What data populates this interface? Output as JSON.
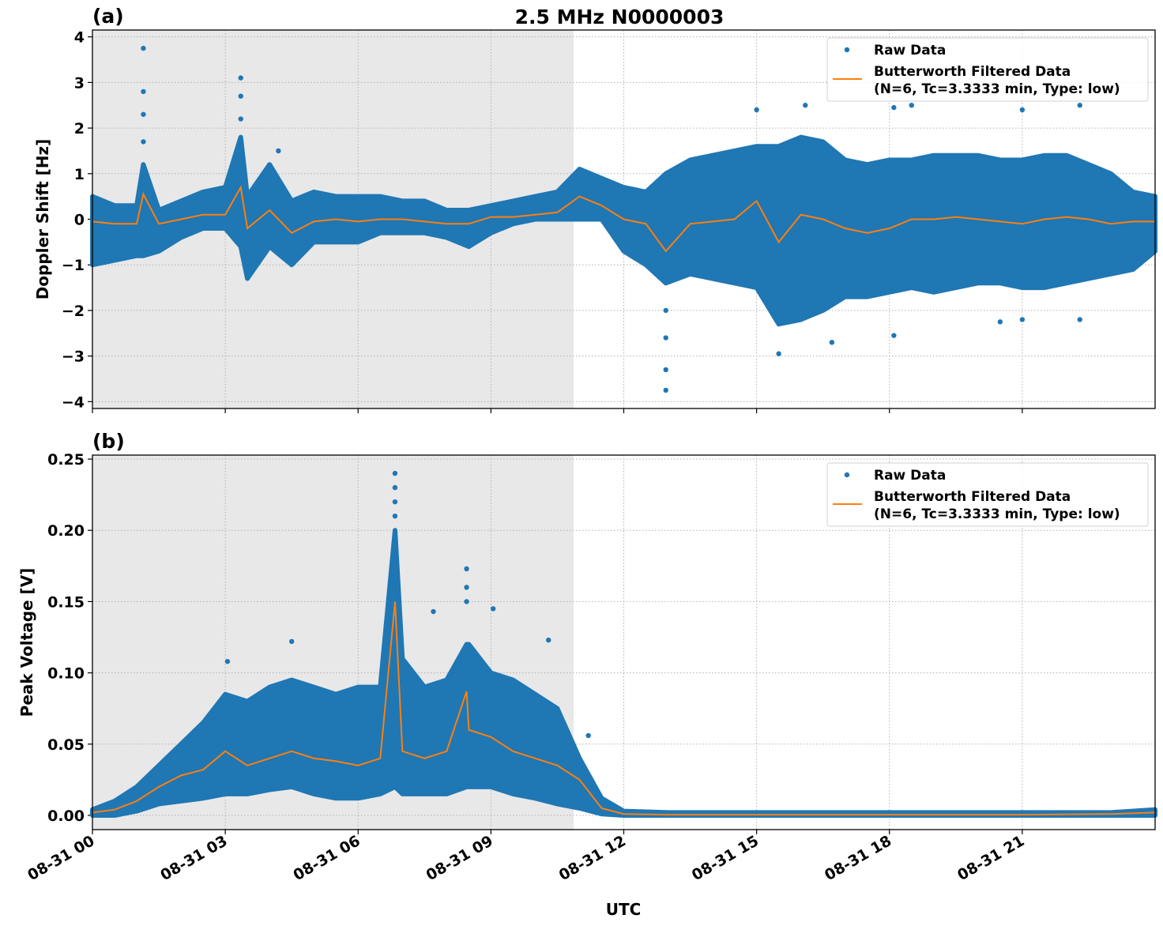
{
  "title": "2.5 MHz N0000003",
  "xlabel": "UTC",
  "colors": {
    "raw": "#1f77b4",
    "filtered": "#ff7f0e",
    "shade": "#e8e8e8",
    "grid": "#b0b0b0"
  },
  "legend": {
    "raw": "Raw Data",
    "filtered_line1": "Butterworth Filtered Data",
    "filtered_line2": "(N=6, Tc=3.3333 min, Type: low)",
    "placement": "top-right"
  },
  "x_ticks": [
    "08-31 00",
    "08-31 03",
    "08-31 06",
    "08-31 09",
    "08-31 12",
    "08-31 15",
    "08-31 18",
    "08-31 21"
  ],
  "xlim": [
    "08-31 00:00",
    "09-01 00:00"
  ],
  "shaded_region": [
    "08-31 00:00",
    "08-31 10:52"
  ],
  "grid": true,
  "chart_data": [
    {
      "type": "scatter",
      "panel_label": "(a)",
      "ylabel": "Doppler Shift [Hz]",
      "ylim": [
        -4.15,
        4.15
      ],
      "y_ticks": [
        "4",
        "3",
        "2",
        "1",
        "0",
        "−1",
        "−2",
        "−3",
        "−4"
      ],
      "y_tick_values": [
        4,
        3,
        2,
        1,
        0,
        -1,
        -2,
        -3,
        -4
      ],
      "x": [
        "00:00",
        "00:30",
        "01:00",
        "01:09",
        "01:30",
        "02:00",
        "02:30",
        "03:00",
        "03:21",
        "03:30",
        "04:00",
        "04:30",
        "05:00",
        "05:30",
        "06:00",
        "06:30",
        "07:00",
        "07:30",
        "08:00",
        "08:30",
        "09:00",
        "09:30",
        "10:00",
        "10:30",
        "11:00",
        "11:30",
        "12:00",
        "12:30",
        "12:57",
        "13:30",
        "14:00",
        "14:30",
        "15:00",
        "15:30",
        "16:00",
        "16:30",
        "17:00",
        "17:30",
        "18:00",
        "18:30",
        "19:00",
        "19:30",
        "20:00",
        "20:30",
        "21:00",
        "21:30",
        "22:00",
        "22:30",
        "23:00",
        "23:30",
        "24:00"
      ],
      "filtered": [
        -0.05,
        -0.1,
        -0.1,
        0.55,
        -0.1,
        0.0,
        0.1,
        0.1,
        0.7,
        -0.2,
        0.2,
        -0.3,
        -0.05,
        0.0,
        -0.05,
        0.0,
        0.0,
        -0.05,
        -0.1,
        -0.1,
        0.05,
        0.05,
        0.1,
        0.15,
        0.5,
        0.3,
        0.0,
        -0.1,
        -0.7,
        -0.1,
        -0.05,
        0.0,
        0.4,
        -0.5,
        0.1,
        0.0,
        -0.2,
        -0.3,
        -0.2,
        0.0,
        0.0,
        0.05,
        0.0,
        -0.05,
        -0.1,
        0.0,
        0.05,
        0.0,
        -0.1,
        -0.05,
        -0.05
      ],
      "raw_lower": [
        -1.0,
        -0.9,
        -0.8,
        -0.8,
        -0.7,
        -0.4,
        -0.2,
        -0.2,
        -0.6,
        -1.3,
        -0.6,
        -1.0,
        -0.5,
        -0.5,
        -0.5,
        -0.3,
        -0.3,
        -0.3,
        -0.4,
        -0.6,
        -0.3,
        -0.1,
        0.0,
        0.0,
        0.0,
        0.0,
        -0.7,
        -1.0,
        -1.4,
        -1.2,
        -1.3,
        -1.4,
        -1.5,
        -2.3,
        -2.2,
        -2.0,
        -1.7,
        -1.7,
        -1.6,
        -1.5,
        -1.6,
        -1.5,
        -1.4,
        -1.4,
        -1.5,
        -1.5,
        -1.4,
        -1.3,
        -1.2,
        -1.1,
        -0.7
      ],
      "raw_upper": [
        0.5,
        0.3,
        0.3,
        1.2,
        0.2,
        0.4,
        0.6,
        0.7,
        1.8,
        0.5,
        1.2,
        0.4,
        0.6,
        0.5,
        0.5,
        0.5,
        0.4,
        0.4,
        0.2,
        0.2,
        0.3,
        0.4,
        0.5,
        0.6,
        1.1,
        0.9,
        0.7,
        0.6,
        1.0,
        1.3,
        1.4,
        1.5,
        1.6,
        1.6,
        1.8,
        1.7,
        1.3,
        1.2,
        1.3,
        1.3,
        1.4,
        1.4,
        1.4,
        1.3,
        1.3,
        1.4,
        1.4,
        1.2,
        1.0,
        0.6,
        0.5
      ],
      "raw_outliers": [
        [
          "01:09",
          3.75
        ],
        [
          "01:09",
          2.8
        ],
        [
          "01:09",
          2.3
        ],
        [
          "01:09",
          1.7
        ],
        [
          "03:21",
          3.1
        ],
        [
          "03:21",
          2.7
        ],
        [
          "03:21",
          2.2
        ],
        [
          "04:12",
          1.5
        ],
        [
          "12:57",
          -3.75
        ],
        [
          "12:57",
          -3.3
        ],
        [
          "12:57",
          -2.6
        ],
        [
          "12:57",
          -2.0
        ],
        [
          "15:00",
          2.4
        ],
        [
          "15:30",
          -2.95
        ],
        [
          "16:06",
          2.5
        ],
        [
          "16:42",
          -2.7
        ],
        [
          "18:06",
          2.45
        ],
        [
          "18:06",
          -2.55
        ],
        [
          "18:30",
          2.5
        ],
        [
          "20:30",
          -2.25
        ],
        [
          "21:00",
          2.4
        ],
        [
          "21:00",
          -2.2
        ],
        [
          "22:18",
          2.5
        ],
        [
          "22:18",
          -2.2
        ]
      ]
    },
    {
      "type": "scatter",
      "panel_label": "(b)",
      "ylabel": "Peak Voltage [V]",
      "ylim": [
        -0.01,
        0.2528
      ],
      "y_ticks": [
        "0.25",
        "0.20",
        "0.15",
        "0.10",
        "0.05",
        "0.00"
      ],
      "y_tick_values": [
        0.25,
        0.2,
        0.15,
        0.1,
        0.05,
        0.0
      ],
      "x": [
        "00:00",
        "00:30",
        "01:00",
        "01:30",
        "02:00",
        "02:30",
        "03:00",
        "03:30",
        "04:00",
        "04:30",
        "05:00",
        "05:30",
        "06:00",
        "06:30",
        "06:50",
        "07:00",
        "07:30",
        "08:00",
        "08:27",
        "08:30",
        "09:00",
        "09:30",
        "10:00",
        "10:30",
        "11:00",
        "11:30",
        "12:00",
        "13:00",
        "15:00",
        "18:00",
        "21:00",
        "23:00",
        "24:00"
      ],
      "filtered": [
        0.002,
        0.004,
        0.01,
        0.02,
        0.028,
        0.032,
        0.045,
        0.035,
        0.04,
        0.045,
        0.04,
        0.038,
        0.035,
        0.04,
        0.15,
        0.045,
        0.04,
        0.045,
        0.087,
        0.06,
        0.055,
        0.045,
        0.04,
        0.035,
        0.025,
        0.005,
        0.001,
        0.0005,
        0.0005,
        0.0005,
        0.0005,
        0.001,
        0.002
      ],
      "raw_lower": [
        0.0,
        0.0,
        0.003,
        0.008,
        0.01,
        0.012,
        0.015,
        0.015,
        0.018,
        0.02,
        0.015,
        0.012,
        0.012,
        0.015,
        0.02,
        0.015,
        0.015,
        0.015,
        0.02,
        0.02,
        0.02,
        0.015,
        0.012,
        0.008,
        0.005,
        0.001,
        0.0,
        0.0,
        0.0,
        0.0,
        0.0,
        0.0,
        0.0
      ],
      "raw_upper": [
        0.004,
        0.01,
        0.02,
        0.035,
        0.05,
        0.065,
        0.085,
        0.08,
        0.09,
        0.095,
        0.09,
        0.085,
        0.09,
        0.09,
        0.2,
        0.11,
        0.09,
        0.095,
        0.12,
        0.12,
        0.1,
        0.095,
        0.085,
        0.075,
        0.04,
        0.012,
        0.003,
        0.002,
        0.002,
        0.002,
        0.002,
        0.002,
        0.004
      ],
      "raw_outliers": [
        [
          "06:50",
          0.24
        ],
        [
          "06:50",
          0.23
        ],
        [
          "06:50",
          0.22
        ],
        [
          "06:50",
          0.21
        ],
        [
          "08:27",
          0.173
        ],
        [
          "08:27",
          0.16
        ],
        [
          "08:27",
          0.15
        ],
        [
          "09:03",
          0.145
        ],
        [
          "07:42",
          0.143
        ],
        [
          "04:30",
          0.122
        ],
        [
          "03:03",
          0.108
        ],
        [
          "10:18",
          0.123
        ],
        [
          "11:12",
          0.056
        ]
      ]
    }
  ]
}
